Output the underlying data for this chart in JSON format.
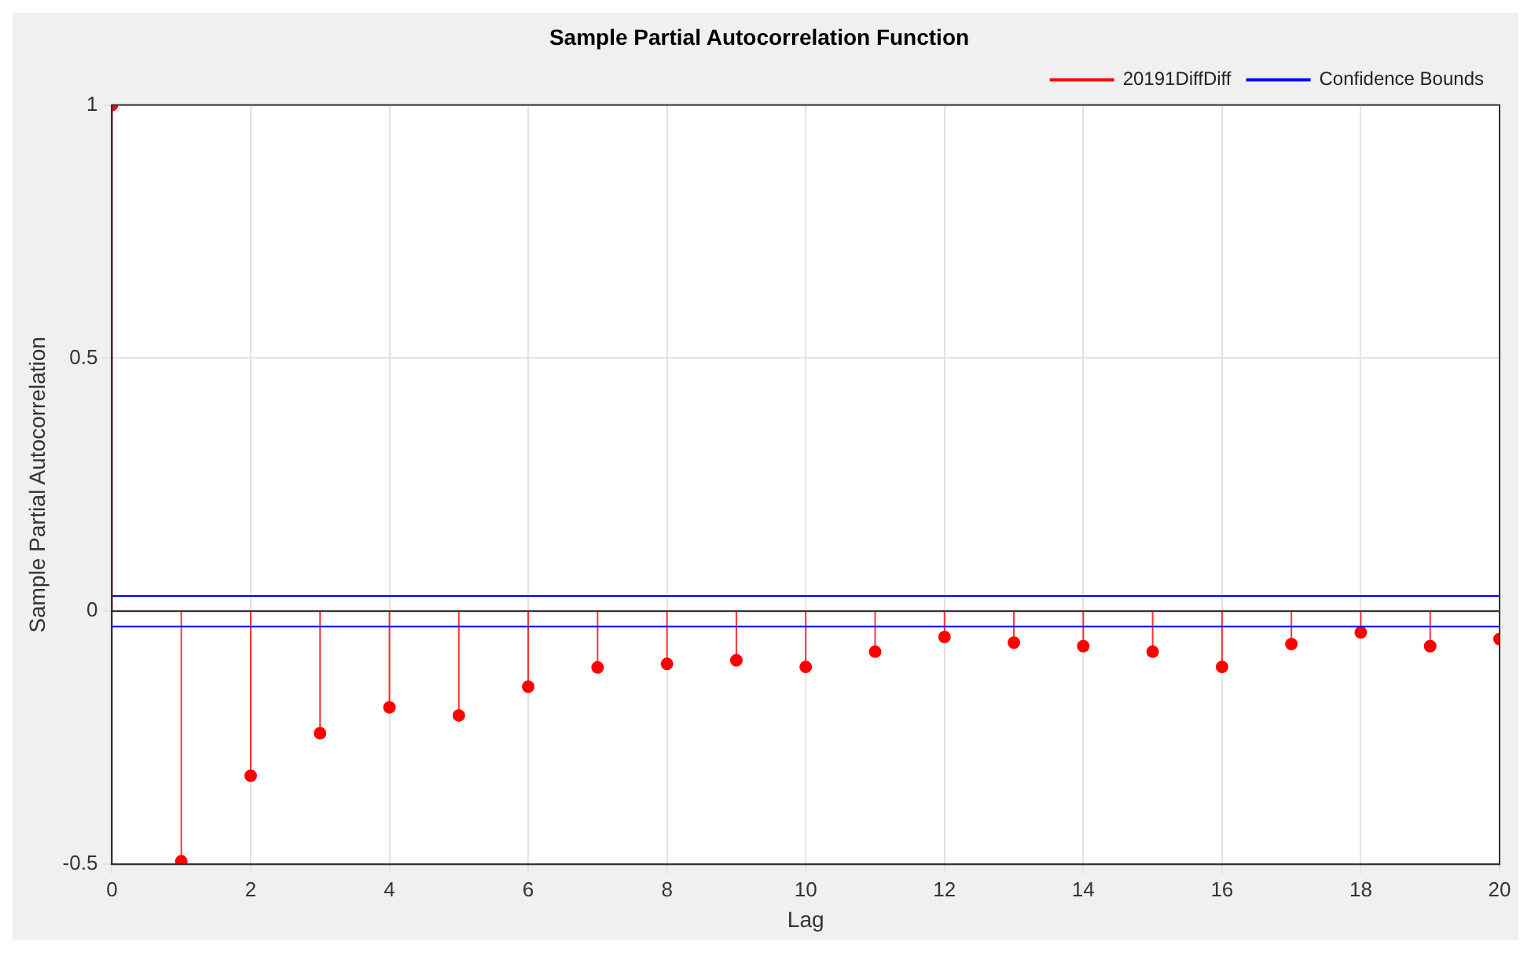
{
  "chart_data": {
    "type": "lollipop",
    "title": "Sample Partial Autocorrelation Function",
    "xlabel": "Lag",
    "ylabel": "Sample Partial Autocorrelation",
    "x": [
      0,
      1,
      2,
      3,
      4,
      5,
      6,
      7,
      8,
      9,
      10,
      11,
      12,
      13,
      14,
      15,
      16,
      17,
      18,
      19,
      20
    ],
    "series": [
      {
        "name": "20191DiffDiff",
        "color": "#ff0000",
        "marker": "circle",
        "values": [
          1,
          -0.494,
          -0.325,
          -0.241,
          -0.19,
          -0.206,
          -0.149,
          -0.111,
          -0.104,
          -0.097,
          -0.11,
          -0.08,
          -0.051,
          -0.062,
          -0.069,
          -0.08,
          -0.11,
          -0.065,
          -0.042,
          -0.069,
          -0.055
        ]
      }
    ],
    "ref_lines": [
      {
        "axis": "y",
        "value": 0.03,
        "label": "Confidence Bounds",
        "color": "#0000ff"
      },
      {
        "axis": "y",
        "value": -0.03,
        "color": "#0000ff"
      }
    ],
    "xlim": [
      0,
      20
    ],
    "xticks": [
      0,
      2,
      4,
      6,
      8,
      10,
      12,
      14,
      16,
      18,
      20
    ],
    "ylim": [
      -0.5,
      1
    ],
    "yticks": [
      -0.5,
      0,
      0.5,
      1
    ],
    "grid": true,
    "legend": "top right"
  }
}
